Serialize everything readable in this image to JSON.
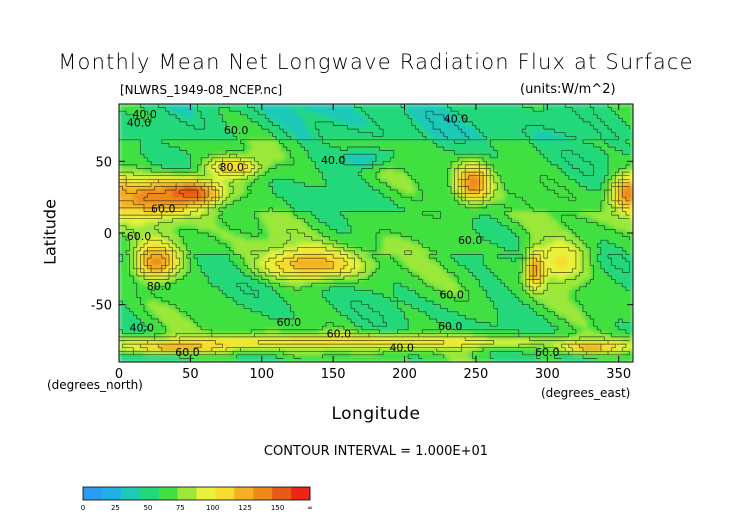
{
  "chart_data": {
    "type": "heatmap",
    "title": "Monthly Mean Net Longwave Radiation Flux at Surface",
    "file_label": "[NLWRS_1949-08_NCEP.nc]",
    "units_label": "(units:W/m^2)",
    "xlabel": "Longitude",
    "ylabel": "Latitude",
    "x_units": "(degrees_east)",
    "y_units": "(degrees_north)",
    "xlim": [
      0,
      360
    ],
    "ylim": [
      -90,
      90
    ],
    "x_ticks": [
      0,
      50,
      100,
      150,
      200,
      250,
      300,
      350
    ],
    "y_ticks": [
      50,
      0,
      -50
    ],
    "contour_interval_label": "CONTOUR INTERVAL = 1.000E+01",
    "contour_labels": [
      {
        "text": "40.0",
        "lon": 18,
        "lat": 83
      },
      {
        "text": "40.0",
        "lon": 14,
        "lat": 77
      },
      {
        "text": "40.0",
        "lon": 236,
        "lat": 80
      },
      {
        "text": "60.0",
        "lon": 82,
        "lat": 72
      },
      {
        "text": "40.0",
        "lon": 150,
        "lat": 51
      },
      {
        "text": "80.0",
        "lon": 79,
        "lat": 46
      },
      {
        "text": "60.0",
        "lon": 31,
        "lat": 17
      },
      {
        "text": "60.0",
        "lon": 14,
        "lat": -2
      },
      {
        "text": "60.0",
        "lon": 246,
        "lat": -5
      },
      {
        "text": "80.0",
        "lon": 28,
        "lat": -37
      },
      {
        "text": "60.0",
        "lon": 233,
        "lat": -43
      },
      {
        "text": "60.0",
        "lon": 119,
        "lat": -62
      },
      {
        "text": "40.0",
        "lon": 16,
        "lat": -66
      },
      {
        "text": "60.0",
        "lon": 232,
        "lat": -65
      },
      {
        "text": "60.0",
        "lon": 154,
        "lat": -70
      },
      {
        "text": "40.0",
        "lon": 198,
        "lat": -80
      },
      {
        "text": "60.0",
        "lon": 48,
        "lat": -83
      },
      {
        "text": "60.0",
        "lon": 300,
        "lat": -83
      }
    ],
    "colorbar": {
      "levels": [
        "0",
        "25",
        "50",
        "75",
        "100",
        "125",
        "150",
        "∞"
      ],
      "colors": [
        "#2b9cf4",
        "#20b0e6",
        "#1fc9b8",
        "#22d87a",
        "#40e040",
        "#9be83a",
        "#e8f23a",
        "#f7dc2e",
        "#f4b223",
        "#ee8a1a",
        "#e85a18",
        "#ec2616"
      ]
    },
    "field_features": [
      {
        "lon": 20,
        "lat": 24,
        "rx": 28,
        "ry": 14,
        "value": 118
      },
      {
        "lon": 50,
        "lat": 28,
        "rx": 28,
        "ry": 12,
        "value": 135
      },
      {
        "lon": 80,
        "lat": 46,
        "rx": 22,
        "ry": 9,
        "value": 100
      },
      {
        "lon": 248,
        "lat": 35,
        "rx": 14,
        "ry": 16,
        "value": 120
      },
      {
        "lon": 357,
        "lat": 28,
        "rx": 14,
        "ry": 14,
        "value": 118
      },
      {
        "lon": 26,
        "lat": -20,
        "rx": 18,
        "ry": 14,
        "value": 118
      },
      {
        "lon": 135,
        "lat": -22,
        "rx": 42,
        "ry": 12,
        "value": 108
      },
      {
        "lon": 292,
        "lat": -25,
        "rx": 7,
        "ry": 14,
        "value": 125
      },
      {
        "lon": 310,
        "lat": -20,
        "rx": 20,
        "ry": 18,
        "value": 90
      },
      {
        "lon": 170,
        "lat": 52,
        "rx": 22,
        "ry": 8,
        "value": 30
      },
      {
        "lon": 160,
        "lat": -76,
        "rx": 200,
        "ry": 6,
        "value": 95
      },
      {
        "lon": 40,
        "lat": -80,
        "rx": 40,
        "ry": 4,
        "value": 110
      },
      {
        "lon": 330,
        "lat": -80,
        "rx": 25,
        "ry": 4,
        "value": 110
      }
    ]
  }
}
